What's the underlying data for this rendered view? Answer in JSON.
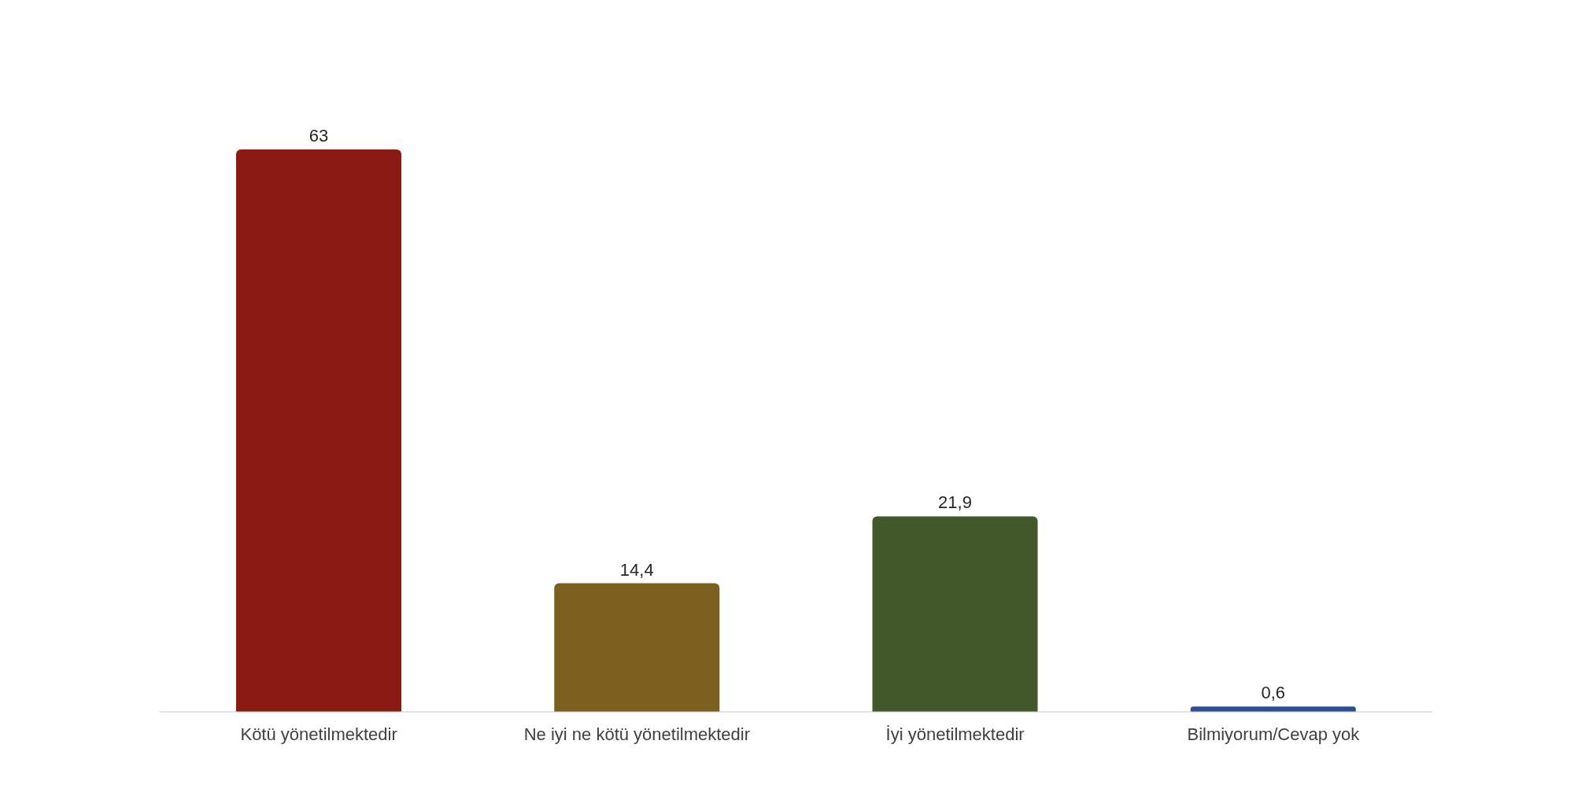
{
  "chart_data": {
    "type": "bar",
    "categories": [
      "Kötü yönetilmektedir",
      "Ne iyi ne kötü yönetilmektedir",
      "İyi yönetilmektedir",
      "Bilmiyorum/Cevap yok"
    ],
    "values": [
      63,
      14.4,
      21.9,
      0.6
    ],
    "value_labels": [
      "63",
      "14,4",
      "21,9",
      "0,6"
    ],
    "colors": [
      "#8b1a12",
      "#7a5f1f",
      "#40582a",
      "#2f4f94"
    ]
  }
}
